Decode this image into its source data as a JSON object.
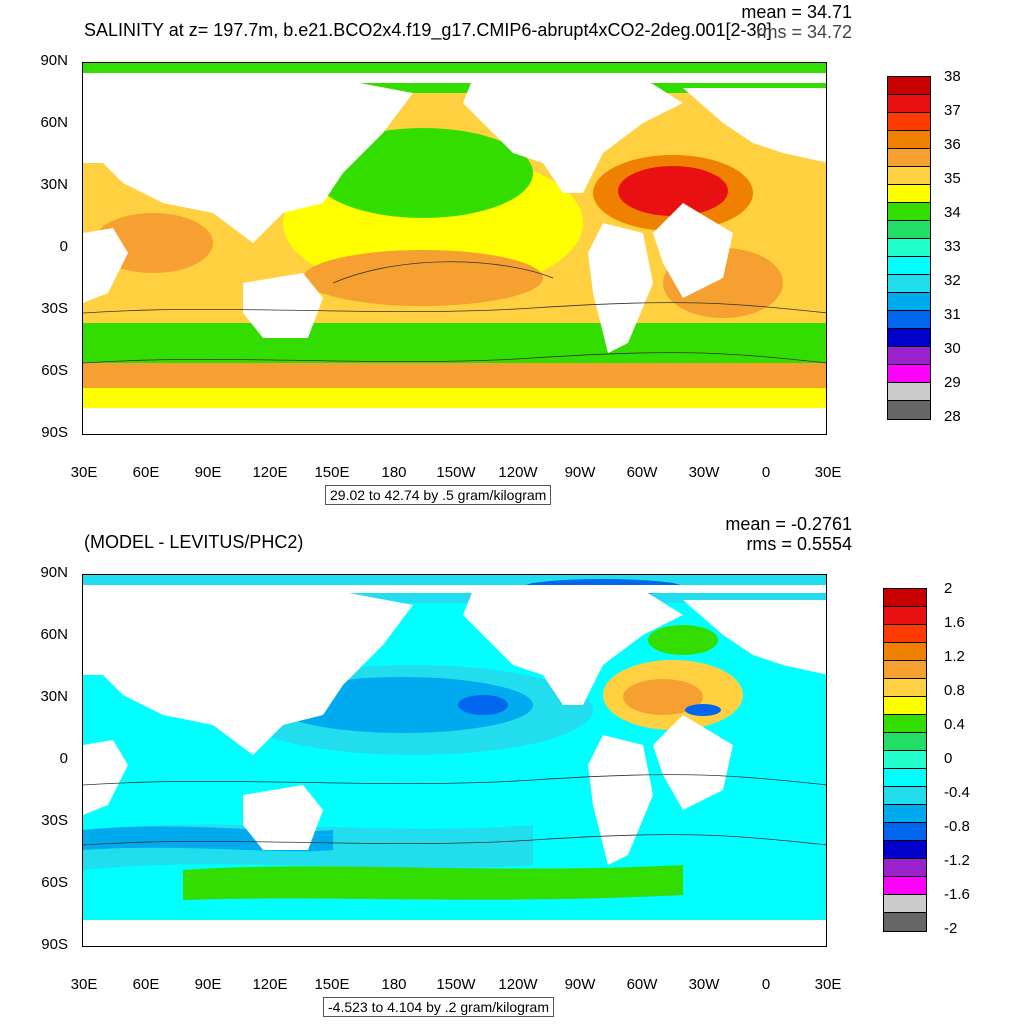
{
  "panel1": {
    "title": "SALINITY at z= 197.7m, b.e21.BCO2x4.f19_g17.CMIP6-abrupt4xCO2-2deg.001[2-30]",
    "mean": "mean = 34.71",
    "rms": "rms = 34.72",
    "range": "29.02 to 42.74 by .5 gram/kilogram",
    "colorbar_labels": [
      "38",
      "37",
      "36",
      "35",
      "34",
      "33",
      "32",
      "31",
      "30",
      "29",
      "28"
    ],
    "colorbar_colors": [
      "#c80000",
      "#e81010",
      "#ff3a00",
      "#f08000",
      "#f5a030",
      "#ffd040",
      "#ffff00",
      "#33dd00",
      "#22dd66",
      "#22ffcc",
      "#00ffff",
      "#22ddee",
      "#00aaee",
      "#0066ee",
      "#0000cc",
      "#9922cc",
      "#ff00ff",
      "#cccccc",
      "#666666"
    ]
  },
  "panel2": {
    "title": "(MODEL - LEVITUS/PHC2)",
    "mean": "mean = -0.2761",
    "rms": "rms = 0.5554",
    "range": "-4.523 to 4.104 by .2 gram/kilogram",
    "colorbar_labels": [
      "2",
      "1.6",
      "1.2",
      "0.8",
      "0.4",
      "0",
      "-0.4",
      "-0.8",
      "-1.2",
      "-1.6",
      "-2"
    ],
    "colorbar_colors": [
      "#c80000",
      "#e81010",
      "#ff3a00",
      "#f08000",
      "#f5a030",
      "#ffd040",
      "#ffff00",
      "#33dd00",
      "#22dd66",
      "#22ffcc",
      "#00ffff",
      "#22ddee",
      "#00aaee",
      "#0066ee",
      "#0000cc",
      "#9922cc",
      "#ff00ff",
      "#cccccc",
      "#666666"
    ]
  },
  "axes": {
    "y_labels": [
      "90N",
      "60N",
      "30N",
      "0",
      "30S",
      "60S",
      "90S"
    ],
    "x_labels": [
      "30E",
      "60E",
      "90E",
      "120E",
      "150E",
      "180",
      "150W",
      "120W",
      "90W",
      "60W",
      "30W",
      "0",
      "30E"
    ]
  }
}
